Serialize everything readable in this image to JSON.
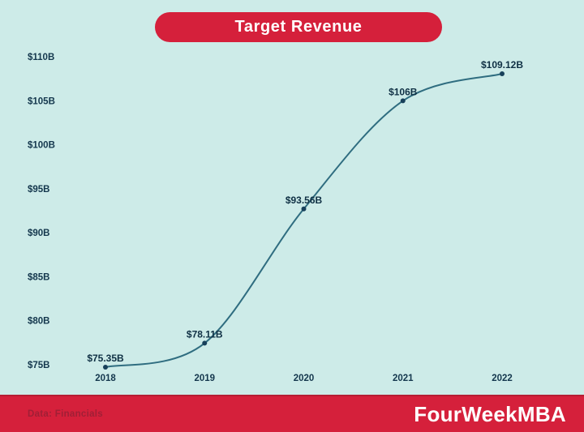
{
  "title": "Target Revenue",
  "footer": {
    "source_label": "Data: Financials",
    "brand": "FourWeekMBA"
  },
  "colors": {
    "background": "#cdebe8",
    "accent_red": "#d5203b",
    "accent_red_dark": "#b51d33",
    "line": "#2f6d80",
    "point": "#17405a",
    "axis_text": "#14374d",
    "label_text": "#0f3044",
    "footer_source_text": "#a01f36",
    "title_text": "#ffffff"
  },
  "chart_data": {
    "type": "line",
    "title": "Target Revenue",
    "xlabel": "",
    "ylabel": "",
    "categories": [
      "2018",
      "2019",
      "2020",
      "2021",
      "2022"
    ],
    "values": [
      75.35,
      78.11,
      93.56,
      106,
      109.12
    ],
    "point_labels": [
      "$75.35B",
      "$78.11B",
      "$93.56B",
      "$106B",
      "$109.12B"
    ],
    "y_ticks": [
      "$110B",
      "$105B",
      "$100B",
      "$95B",
      "$90B",
      "$85B",
      "$80B",
      "$75B"
    ],
    "y_tick_values": [
      110,
      105,
      100,
      95,
      90,
      85,
      80,
      75
    ],
    "ylim": [
      75,
      110
    ],
    "grid": false,
    "legend": null,
    "curve": "smooth"
  }
}
